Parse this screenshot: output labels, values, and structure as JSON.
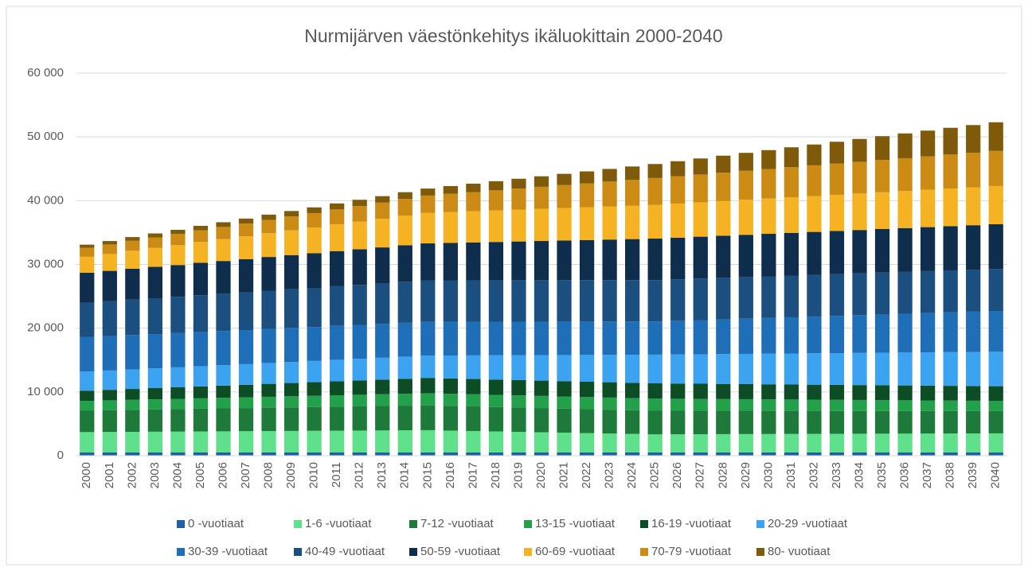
{
  "chart_data": {
    "type": "stacked_bar",
    "title": "Nurmijärven väestönkehitys ikäluokittain 2000-2040",
    "categories": [
      "2000",
      "2001",
      "2002",
      "2003",
      "2004",
      "2005",
      "2006",
      "2007",
      "2008",
      "2009",
      "2010",
      "2011",
      "2012",
      "2013",
      "2014",
      "2015",
      "2016",
      "2017",
      "2018",
      "2019",
      "2020",
      "2021",
      "2022",
      "2023",
      "2024",
      "2025",
      "2026",
      "2027",
      "2028",
      "2029",
      "2030",
      "2031",
      "2032",
      "2033",
      "2034",
      "2035",
      "2036",
      "2037",
      "2038",
      "2039",
      "2040"
    ],
    "ylim": [
      0,
      60000
    ],
    "yticks": [
      0,
      {
        "value": 10000,
        "label": "10 000"
      },
      {
        "value": 20000,
        "label": "20 000"
      },
      {
        "value": 30000,
        "label": "30 000"
      },
      {
        "value": 40000,
        "label": "40 000"
      },
      {
        "value": 50000,
        "label": "50 000"
      },
      {
        "value": 60000,
        "label": "60 000"
      }
    ],
    "grid": true,
    "legend": "bottom",
    "series": [
      {
        "name": "0 -vuotiaat",
        "color": "#1f5fa8",
        "values": [
          500,
          500,
          500,
          500,
          500,
          500,
          500,
          500,
          500,
          500,
          500,
          500,
          500,
          500,
          500,
          500,
          500,
          500,
          500,
          500,
          500,
          500,
          500,
          500,
          500,
          500,
          500,
          500,
          500,
          500,
          500,
          500,
          500,
          500,
          500,
          500,
          500,
          500,
          500,
          500,
          500
        ]
      },
      {
        "name": "1-6 -vuotiaat",
        "color": "#5fe08a",
        "values": [
          3200,
          3220,
          3240,
          3260,
          3280,
          3300,
          3320,
          3340,
          3360,
          3380,
          3400,
          3420,
          3440,
          3460,
          3480,
          3500,
          3435,
          3370,
          3305,
          3240,
          3175,
          3110,
          3045,
          2980,
          2915,
          2850,
          2860,
          2870,
          2880,
          2890,
          2900,
          2910,
          2920,
          2930,
          2940,
          2950,
          2960,
          2970,
          2980,
          2990,
          3000
        ]
      },
      {
        "name": "7-12 -vuotiaat",
        "color": "#1e7a3a",
        "values": [
          3400,
          3430,
          3470,
          3500,
          3530,
          3570,
          3600,
          3630,
          3670,
          3700,
          3730,
          3770,
          3800,
          3830,
          3870,
          3900,
          3880,
          3860,
          3840,
          3820,
          3800,
          3780,
          3760,
          3740,
          3720,
          3700,
          3690,
          3670,
          3660,
          3650,
          3630,
          3620,
          3610,
          3590,
          3580,
          3570,
          3550,
          3540,
          3530,
          3510,
          3500
        ]
      },
      {
        "name": "13-15 -vuotiaat",
        "color": "#22a04a",
        "values": [
          1500,
          1530,
          1550,
          1580,
          1610,
          1630,
          1660,
          1690,
          1710,
          1740,
          1770,
          1790,
          1820,
          1850,
          1870,
          1900,
          1900,
          1900,
          1900,
          1900,
          1900,
          1900,
          1900,
          1900,
          1900,
          1900,
          1880,
          1860,
          1840,
          1820,
          1800,
          1780,
          1760,
          1740,
          1720,
          1700,
          1680,
          1660,
          1640,
          1620,
          1600
        ]
      },
      {
        "name": "16-19 -vuotiaat",
        "color": "#0d4d26",
        "values": [
          1600,
          1650,
          1710,
          1760,
          1810,
          1870,
          1920,
          1970,
          2030,
          2080,
          2130,
          2190,
          2240,
          2290,
          2350,
          2400,
          2400,
          2400,
          2400,
          2400,
          2400,
          2400,
          2400,
          2400,
          2400,
          2400,
          2390,
          2390,
          2380,
          2370,
          2370,
          2360,
          2350,
          2350,
          2340,
          2330,
          2330,
          2320,
          2310,
          2310,
          2300
        ]
      },
      {
        "name": "20-29 -vuotiaat",
        "color": "#3ba3f0",
        "values": [
          3000,
          3030,
          3070,
          3100,
          3130,
          3170,
          3200,
          3230,
          3270,
          3300,
          3330,
          3370,
          3400,
          3430,
          3470,
          3500,
          3600,
          3700,
          3800,
          3900,
          4000,
          4100,
          4200,
          4300,
          4400,
          4500,
          4560,
          4620,
          4680,
          4740,
          4800,
          4860,
          4920,
          4980,
          5040,
          5100,
          5160,
          5220,
          5280,
          5340,
          5400
        ]
      },
      {
        "name": "30-39 -vuotiaat",
        "color": "#1f6fb8",
        "values": [
          5400,
          5390,
          5390,
          5380,
          5370,
          5370,
          5360,
          5350,
          5350,
          5340,
          5330,
          5330,
          5320,
          5310,
          5310,
          5300,
          5290,
          5280,
          5270,
          5260,
          5250,
          5240,
          5230,
          5220,
          5210,
          5200,
          5280,
          5360,
          5440,
          5520,
          5600,
          5680,
          5760,
          5840,
          5920,
          6000,
          6080,
          6160,
          6240,
          6320,
          6400
        ]
      },
      {
        "name": "40-49 -vuotiaat",
        "color": "#1a4f80",
        "values": [
          5400,
          5470,
          5550,
          5620,
          5690,
          5770,
          5840,
          5910,
          5990,
          6060,
          6130,
          6210,
          6280,
          6350,
          6430,
          6500,
          6500,
          6500,
          6500,
          6500,
          6500,
          6500,
          6500,
          6500,
          6500,
          6500,
          6510,
          6510,
          6520,
          6530,
          6530,
          6540,
          6550,
          6550,
          6560,
          6570,
          6570,
          6580,
          6590,
          6590,
          6600
        ]
      },
      {
        "name": "50-59 -vuotiaat",
        "color": "#0f2d4d",
        "values": [
          4700,
          4770,
          4850,
          4920,
          4990,
          5070,
          5140,
          5210,
          5290,
          5360,
          5430,
          5510,
          5580,
          5650,
          5730,
          5800,
          5870,
          5940,
          6010,
          6080,
          6150,
          6220,
          6290,
          6360,
          6430,
          6500,
          6530,
          6570,
          6600,
          6630,
          6670,
          6700,
          6730,
          6770,
          6800,
          6830,
          6870,
          6900,
          6930,
          6970,
          7000
        ]
      },
      {
        "name": "60-69 -vuotiaat",
        "color": "#f5b323",
        "values": [
          2500,
          2650,
          2810,
          2960,
          3110,
          3270,
          3420,
          3570,
          3730,
          3880,
          4030,
          4190,
          4340,
          4490,
          4650,
          4800,
          4850,
          4900,
          4950,
          5000,
          5050,
          5100,
          5150,
          5200,
          5250,
          5300,
          5350,
          5390,
          5440,
          5490,
          5530,
          5580,
          5630,
          5670,
          5720,
          5770,
          5810,
          5860,
          5910,
          5950,
          6000
        ]
      },
      {
        "name": "70-79 -vuotiaat",
        "color": "#cc8b14",
        "values": [
          1400,
          1490,
          1570,
          1660,
          1750,
          1830,
          1920,
          2010,
          2090,
          2180,
          2270,
          2350,
          2440,
          2530,
          2610,
          2700,
          2850,
          3000,
          3150,
          3300,
          3450,
          3600,
          3750,
          3900,
          4050,
          4200,
          4290,
          4370,
          4460,
          4550,
          4630,
          4720,
          4810,
          4890,
          4980,
          5070,
          5150,
          5240,
          5330,
          5410,
          5500
        ]
      },
      {
        "name": "80- vuotiaat",
        "color": "#7f5a0a",
        "values": [
          500,
          540,
          580,
          620,
          660,
          700,
          740,
          780,
          820,
          860,
          900,
          940,
          980,
          1020,
          1060,
          1100,
          1210,
          1320,
          1430,
          1540,
          1650,
          1760,
          1870,
          1980,
          2090,
          2200,
          2350,
          2510,
          2660,
          2810,
          2970,
          3120,
          3270,
          3430,
          3580,
          3730,
          3890,
          4040,
          4190,
          4350,
          4500
        ]
      }
    ]
  }
}
